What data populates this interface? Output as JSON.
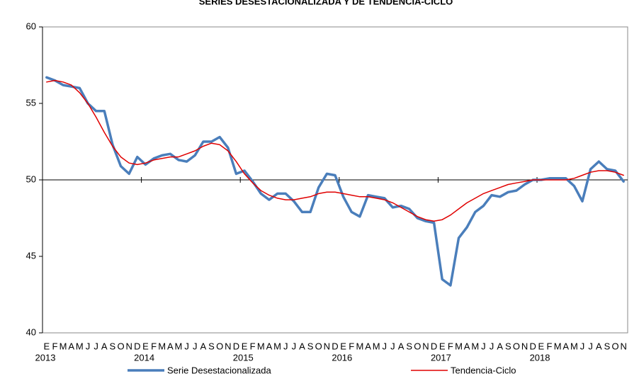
{
  "chart_data": {
    "type": "line",
    "title": "SERIES DESESTACIONALIZADA Y DE TENDENCIA-CICLO",
    "categories": [
      "E",
      "F",
      "M",
      "A",
      "M",
      "J",
      "J",
      "A",
      "S",
      "O",
      "N",
      "D",
      "E",
      "F",
      "M",
      "A",
      "M",
      "J",
      "J",
      "A",
      "S",
      "O",
      "N",
      "D",
      "E",
      "F",
      "M",
      "A",
      "M",
      "J",
      "J",
      "A",
      "S",
      "O",
      "N",
      "D",
      "E",
      "F",
      "M",
      "A",
      "M",
      "J",
      "J",
      "A",
      "S",
      "O",
      "N",
      "D",
      "E",
      "F",
      "M",
      "A",
      "M",
      "J",
      "J",
      "A",
      "S",
      "O",
      "N",
      "D",
      "E",
      "F",
      "M",
      "A",
      "M",
      "J",
      "J",
      "A",
      "S",
      "O",
      "N"
    ],
    "years": [
      "2013",
      "2014",
      "2015",
      "2016",
      "2017",
      "2018"
    ],
    "series": [
      {
        "name": "Serie Desestacionalizada",
        "color": "#4a7ebb",
        "width": 3.5,
        "values": [
          56.7,
          56.5,
          56.2,
          56.1,
          56.0,
          55.0,
          54.5,
          54.5,
          52.3,
          50.9,
          50.4,
          51.5,
          51.0,
          51.4,
          51.6,
          51.7,
          51.3,
          51.2,
          51.6,
          52.5,
          52.5,
          52.8,
          52.1,
          50.4,
          50.6,
          49.9,
          49.1,
          48.7,
          49.1,
          49.1,
          48.6,
          47.9,
          47.9,
          49.5,
          50.4,
          50.3,
          48.9,
          47.9,
          47.6,
          49.0,
          48.9,
          48.8,
          48.2,
          48.3,
          48.1,
          47.5,
          47.3,
          47.2,
          43.5,
          43.1,
          46.2,
          46.9,
          47.9,
          48.3,
          49.0,
          48.9,
          49.2,
          49.3,
          49.7,
          50.0,
          50.0,
          50.1,
          50.1,
          50.1,
          49.6,
          48.6,
          50.7,
          51.2,
          50.7,
          50.6,
          49.9
        ]
      },
      {
        "name": "Tendencia-Ciclo",
        "color": "#e00000",
        "width": 1.5,
        "values": [
          56.4,
          56.5,
          56.4,
          56.2,
          55.7,
          55.0,
          54.1,
          53.1,
          52.2,
          51.5,
          51.1,
          51.0,
          51.1,
          51.3,
          51.4,
          51.5,
          51.5,
          51.7,
          51.9,
          52.2,
          52.4,
          52.3,
          51.9,
          51.2,
          50.4,
          49.8,
          49.3,
          49.0,
          48.8,
          48.7,
          48.7,
          48.8,
          48.9,
          49.1,
          49.2,
          49.2,
          49.1,
          49.0,
          48.9,
          48.9,
          48.8,
          48.7,
          48.5,
          48.2,
          47.9,
          47.6,
          47.4,
          47.3,
          47.4,
          47.7,
          48.1,
          48.5,
          48.8,
          49.1,
          49.3,
          49.5,
          49.7,
          49.8,
          49.9,
          50.0,
          50.0,
          50.0,
          50.0,
          50.0,
          50.1,
          50.3,
          50.5,
          50.6,
          50.6,
          50.5,
          50.3
        ]
      }
    ],
    "ylim": [
      40,
      60
    ],
    "yticks": [
      40,
      45,
      50,
      55,
      60
    ],
    "x_axis_crosses": 50,
    "grid": false,
    "legend": "bottom"
  }
}
